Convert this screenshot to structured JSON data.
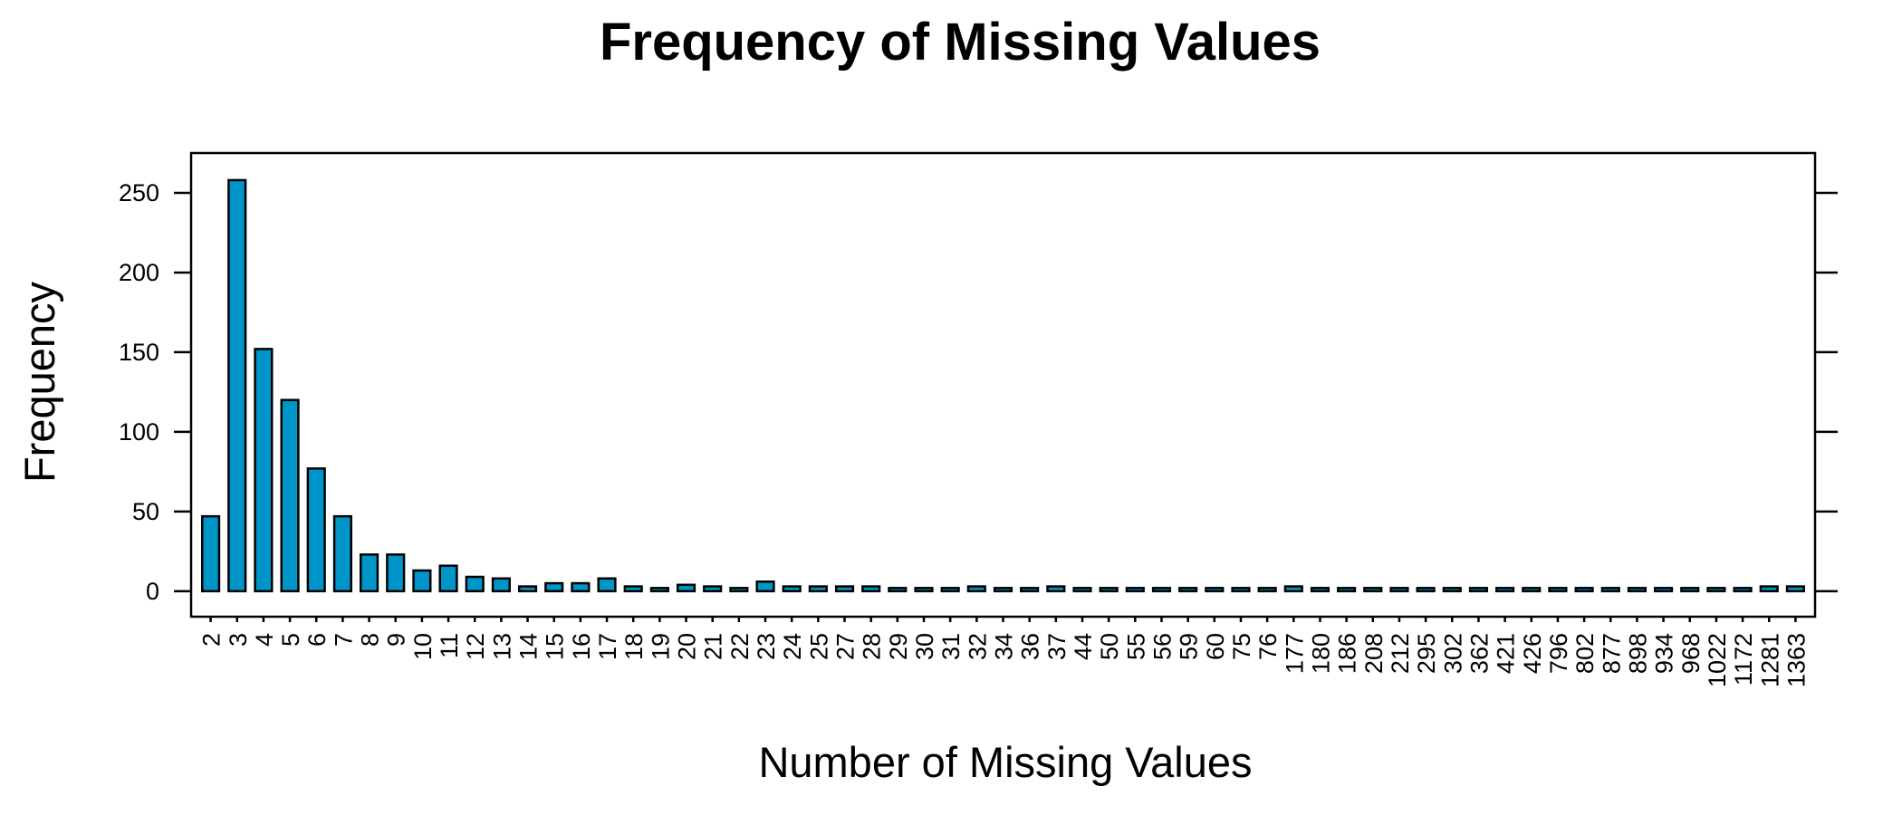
{
  "chart_data": {
    "type": "bar",
    "title": "Frequency of Missing Values",
    "xlabel": "Number of Missing Values",
    "ylabel": "Frequency",
    "categories": [
      "2",
      "3",
      "4",
      "5",
      "6",
      "7",
      "8",
      "9",
      "10",
      "11",
      "12",
      "13",
      "14",
      "15",
      "16",
      "17",
      "18",
      "19",
      "20",
      "21",
      "22",
      "23",
      "24",
      "25",
      "27",
      "28",
      "29",
      "30",
      "31",
      "32",
      "34",
      "36",
      "37",
      "44",
      "50",
      "55",
      "56",
      "59",
      "60",
      "75",
      "76",
      "177",
      "180",
      "186",
      "208",
      "212",
      "295",
      "302",
      "362",
      "421",
      "426",
      "796",
      "802",
      "877",
      "898",
      "934",
      "968",
      "1022",
      "1172",
      "1281",
      "1363"
    ],
    "values": [
      47,
      258,
      152,
      120,
      77,
      47,
      23,
      23,
      13,
      16,
      9,
      8,
      3,
      5,
      5,
      8,
      3,
      2,
      4,
      3,
      2,
      6,
      3,
      3,
      3,
      3,
      2,
      2,
      2,
      3,
      2,
      2,
      3,
      2,
      2,
      2,
      2,
      2,
      2,
      2,
      2,
      3,
      2,
      2,
      2,
      2,
      2,
      2,
      2,
      2,
      2,
      2,
      2,
      2,
      2,
      2,
      2,
      2,
      2,
      3,
      3
    ],
    "ylim": [
      -16,
      275
    ],
    "yticks": [
      0,
      50,
      100,
      150,
      200,
      250
    ],
    "grid": false,
    "legend": "none",
    "bar_color": "#0095C8",
    "edge_color": "#000000"
  }
}
